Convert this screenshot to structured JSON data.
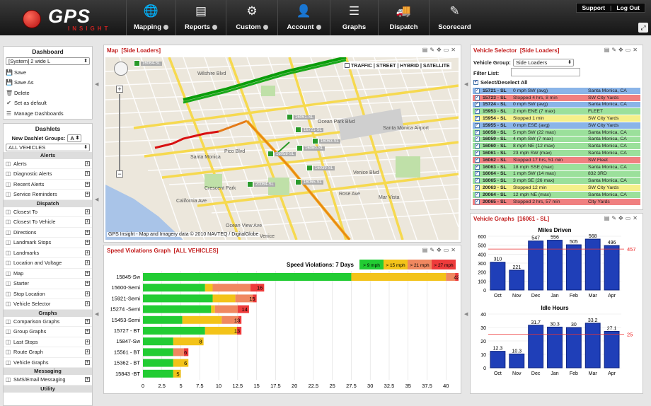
{
  "header": {
    "logo_text": "GPS",
    "logo_sub": "INSIGHT",
    "nav": [
      {
        "label": "Mapping",
        "icon": "globe-icon",
        "dropdown": true
      },
      {
        "label": "Reports",
        "icon": "reports-icon",
        "dropdown": true
      },
      {
        "label": "Custom",
        "icon": "gears-icon",
        "dropdown": true
      },
      {
        "label": "Account",
        "icon": "user-icon",
        "dropdown": true
      },
      {
        "label": "Graphs",
        "icon": "sliders-icon",
        "dropdown": false
      },
      {
        "label": "Dispatch",
        "icon": "truck-icon",
        "dropdown": false
      },
      {
        "label": "Scorecard",
        "icon": "scorecard-icon",
        "dropdown": false
      }
    ],
    "support": "Support",
    "logout": "Log Out"
  },
  "sidebar": {
    "dashboard_title": "Dashboard",
    "dashboard_select": "[System] 2 wide L",
    "actions": [
      "Save",
      "Save As",
      "Delete",
      "Set as default",
      "Manage Dashboards"
    ],
    "dashlets_title": "Dashlets",
    "new_groups_label": "New Dashlet Groups:",
    "new_groups_value": "A",
    "vehicles_select": "ALL VEHICLES",
    "sections": [
      {
        "name": "Alerts",
        "items": [
          "Alerts",
          "Diagnostic Alerts",
          "Recent Alerts",
          "Service Reminders"
        ]
      },
      {
        "name": "Dispatch",
        "items": [
          "Closest To",
          "Closest To Vehicle",
          "Directions",
          "Landmark Stops",
          "Landmarks",
          "Location and Voltage",
          "Map",
          "Starter",
          "Stop Location",
          "Vehicle Selector"
        ]
      },
      {
        "name": "Graphs",
        "items": [
          "Comparison Graphs",
          "Group Graphs",
          "Last Stops",
          "Route Graph",
          "Vehicle Graphs"
        ]
      },
      {
        "name": "Messaging",
        "items": [
          "SMS/Email Messaging"
        ]
      },
      {
        "name": "Utility",
        "items": []
      }
    ]
  },
  "map": {
    "title": "Map",
    "subtitle": "[Side Loaders]",
    "layers": "TRAFFIC | STREET | HYBRID | SATELLITE",
    "credit": "GPS Insight - Map and Imagery data © 2010 NAVTEQ / DigitalGlobe",
    "places": [
      "Santa Monica",
      "Crescent Park",
      "Santa Monica Airport",
      "Mar Vista",
      "Venice",
      "Ocean Park Blvd",
      "Pico Blvd",
      "Rose Ave",
      "Wilshire Blvd",
      "Venice Blvd",
      "California Ave",
      "Ocean View Ave"
    ],
    "markers": [
      "16064-SL",
      "16061-SL",
      "16721-SL",
      "16063-SL",
      "16060-SL",
      "16058-SL",
      "16039-SL",
      "20064-SL",
      "16065-SL"
    ]
  },
  "speed": {
    "title": "Speed Violations Graph",
    "subtitle": "[ALL VEHICLES]",
    "legend_title": "Speed Violations: 7 Days",
    "legend": [
      {
        "label": "> 9 mph",
        "color": "#22cc33"
      },
      {
        "label": "> 15 mph",
        "color": "#f3c319"
      },
      {
        "label": "> 21 mph",
        "color": "#f08860"
      },
      {
        "label": "> 27 mph",
        "color": "#ee3b3b"
      }
    ]
  },
  "chart_data": [
    {
      "type": "bar",
      "orientation": "horizontal",
      "title": "Speed Violations: 7 Days",
      "categories": [
        "15845-Sw",
        "15600-Semi",
        "15921-Semi",
        "15274 -Semi",
        "15453-Semi",
        "15727 - BT",
        "15847-Sw",
        "15561 - BT",
        "15362 - BT",
        "15843 -BT"
      ],
      "series": [
        {
          "name": "> 9 mph",
          "values": [
            27.5,
            8.2,
            9.2,
            9,
            5.2,
            8.2,
            4,
            4,
            4,
            4
          ]
        },
        {
          "name": "> 15 mph",
          "values": [
            12.5,
            1,
            3,
            0.5,
            5.2,
            4.2,
            4,
            0,
            2,
            1
          ]
        },
        {
          "name": "> 21 mph",
          "values": [
            1.2,
            5,
            2.3,
            3,
            2.2,
            0,
            0,
            1.4,
            0,
            0
          ]
        },
        {
          "name": "> 27 mph",
          "values": [
            0.8,
            1.8,
            0.5,
            1.5,
            0.4,
            0.6,
            0,
            0.6,
            0,
            0
          ]
        }
      ],
      "totals": [
        42,
        16,
        15,
        14,
        13,
        13,
        8,
        6,
        6,
        5
      ],
      "xlim": [
        0,
        41
      ],
      "xticks": [
        "0",
        "2.5",
        "5",
        "7.5",
        "10",
        "12.5",
        "15",
        "17.5",
        "20",
        "22.5",
        "25",
        "27.5",
        "30",
        "32.5",
        "35",
        "37.5",
        "40"
      ]
    },
    {
      "type": "bar",
      "title": "Miles Driven",
      "categories": [
        "Oct",
        "Nov",
        "Dec",
        "Jan",
        "Feb",
        "Mar",
        "Apr"
      ],
      "values": [
        310,
        221,
        547,
        556,
        505,
        568,
        496
      ],
      "average": 457,
      "ylim": [
        0,
        600
      ],
      "yticks": [
        "0",
        "100",
        "200",
        "300",
        "400",
        "500",
        "600"
      ]
    },
    {
      "type": "bar",
      "title": "Idle Hours",
      "categories": [
        "Oct",
        "Nov",
        "Dec",
        "Jan",
        "Feb",
        "Mar",
        "Apr"
      ],
      "values": [
        12.3,
        10.3,
        31.7,
        30.3,
        30,
        33.2,
        27.1
      ],
      "average": 25,
      "ylim": [
        0,
        40
      ],
      "yticks": [
        "0",
        "10",
        "20",
        "30",
        "40"
      ]
    }
  ],
  "vehicle_selector": {
    "title": "Vehicle Selector",
    "subtitle": "[Side Loaders]",
    "group_label": "Vehicle Group:",
    "group_value": "Side Loaders",
    "filter_label": "Filter List:",
    "select_all": "Select/Deselect All",
    "rows": [
      {
        "id": "15721 - SL",
        "status": "0 mph SW (avg)",
        "loc": "Santa Monica, CA",
        "color": "#8ab4e8"
      },
      {
        "id": "15723 - SL",
        "status": "Stopped 4 hrs, 8 min",
        "loc": "SW City Yards",
        "color": "#f08080"
      },
      {
        "id": "15724 - SL",
        "status": "0 mph SW (avg)",
        "loc": "Santa Monica, CA",
        "color": "#8ab4e8"
      },
      {
        "id": "15953 - SL",
        "status": "2 mph ENE (7 max)",
        "loc": "FLEET",
        "color": "#9be09b"
      },
      {
        "id": "15954 - SL",
        "status": "Stopped 1 min",
        "loc": "SW City Yards",
        "color": "#f5f08a"
      },
      {
        "id": "15955 - SL",
        "status": "0 mph ESE (avg)",
        "loc": "SW City Yards",
        "color": "#8ab4e8"
      },
      {
        "id": "16058 - SL",
        "status": "5 mph SW (22 max)",
        "loc": "Santa Monica, CA",
        "color": "#9be09b"
      },
      {
        "id": "16059 - SL",
        "status": "4 mph SW (7 max)",
        "loc": "Santa Monica, CA",
        "color": "#9be09b"
      },
      {
        "id": "16060 - SL",
        "status": "8 mph NE (12 max)",
        "loc": "Santa Monica, CA",
        "color": "#9be09b"
      },
      {
        "id": "16061 - SL",
        "status": "23 mph SW (max)",
        "loc": "Santa Monica, CA",
        "color": "#9be09b"
      },
      {
        "id": "16062 - SL",
        "status": "Stopped 17 hrs, 51 min",
        "loc": "SW Fleet",
        "color": "#f08080"
      },
      {
        "id": "16063 - SL",
        "status": "18 mph SSE (max)",
        "loc": "Santa Monica, CA",
        "color": "#9be09b"
      },
      {
        "id": "16064 - SL",
        "status": "1 mph SW (14 max)",
        "loc": "832 3RD",
        "color": "#9be09b"
      },
      {
        "id": "16065 - SL",
        "status": "3 mph SE (26 max)",
        "loc": "Santa Monica, CA",
        "color": "#9be09b"
      },
      {
        "id": "20063 - SL",
        "status": "Stopped 12 min",
        "loc": "SW City Yards",
        "color": "#f5f08a"
      },
      {
        "id": "20064 - SL",
        "status": "12 mph NE (max)",
        "loc": "Santa Monica, CA",
        "color": "#9be09b"
      },
      {
        "id": "20065 - SL",
        "status": "Stopped 2 hrs, 57 min",
        "loc": "City Yards",
        "color": "#f08080"
      }
    ]
  },
  "vehicle_graphs": {
    "title": "Vehicle Graphs",
    "subtitle": "[16061 - SL]"
  }
}
